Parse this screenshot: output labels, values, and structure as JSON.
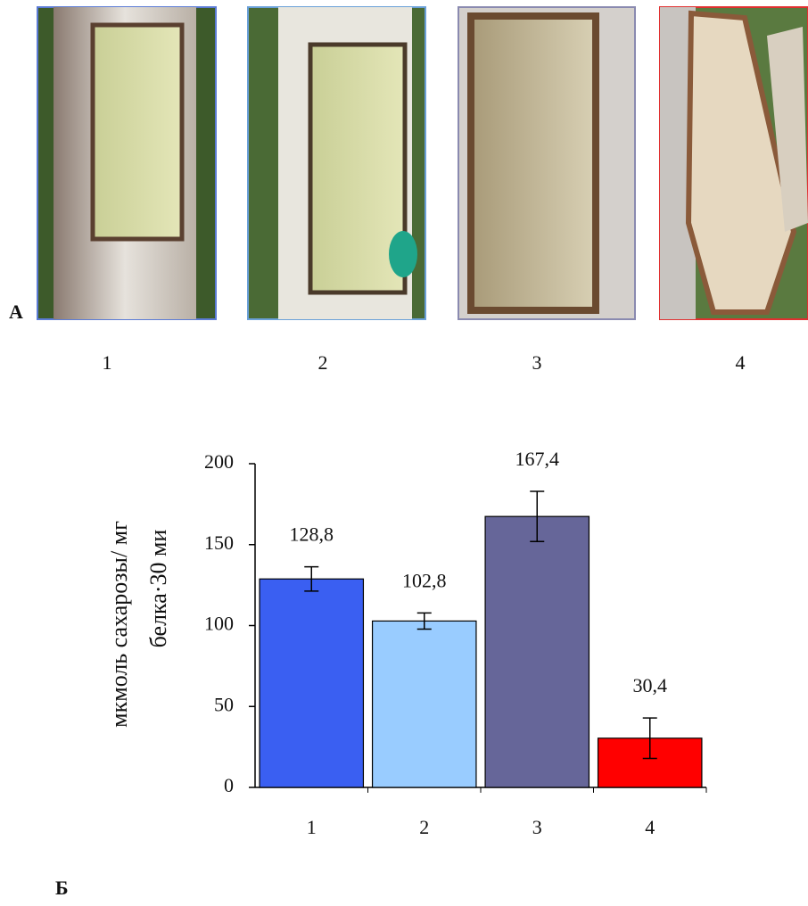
{
  "panel_a": {
    "label": "А",
    "photos": [
      "1",
      "2",
      "3",
      "4"
    ]
  },
  "panel_b_label": "Б",
  "chart_data": {
    "type": "bar",
    "ylabel": [
      "мкмоль сахарозы/ мг",
      "белка·30 ми"
    ],
    "categories": [
      "1",
      "2",
      "3",
      "4"
    ],
    "values": [
      128.8,
      102.8,
      167.4,
      30.4
    ],
    "value_labels": [
      "128,8",
      "102,8",
      "167,4",
      "30,4"
    ],
    "errors": [
      7.5,
      5,
      15.5,
      12.5
    ],
    "colors": [
      "#3a5ff2",
      "#99ccff",
      "#666699",
      "#ff0000"
    ],
    "ylim": [
      0,
      200
    ],
    "yticks": [
      0,
      50,
      100,
      150,
      200
    ]
  }
}
